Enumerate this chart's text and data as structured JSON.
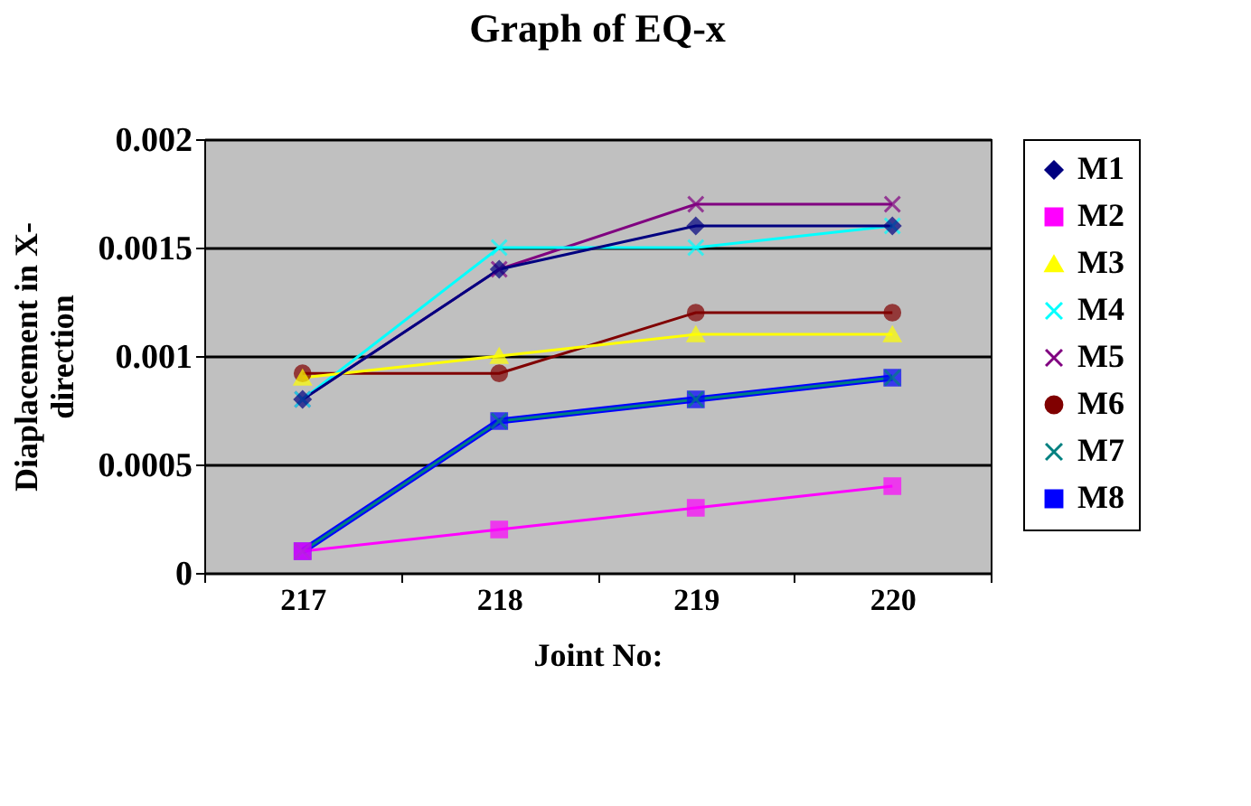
{
  "chart_data": {
    "type": "line",
    "title": "Graph of EQ-x",
    "xlabel": "Joint No:",
    "ylabel": "Diaplacement in X-direction",
    "categories": [
      "217",
      "218",
      "219",
      "220"
    ],
    "ylim": [
      0,
      0.002
    ],
    "yticks": [
      0,
      0.0005,
      0.001,
      0.0015,
      0.002
    ],
    "grid": "y",
    "legend": "right",
    "series": [
      {
        "name": "M1",
        "color": "#000080",
        "marker": "diamond",
        "values": [
          0.0008,
          0.0014,
          0.0016,
          0.0016
        ]
      },
      {
        "name": "M2",
        "color": "#ff00ff",
        "marker": "square",
        "values": [
          0.0001,
          0.0002,
          0.0003,
          0.0004
        ]
      },
      {
        "name": "M3",
        "color": "#ffff00",
        "marker": "triangle",
        "values": [
          0.0009,
          0.001,
          0.0011,
          0.0011
        ]
      },
      {
        "name": "M4",
        "color": "#00ffff",
        "marker": "cross",
        "values": [
          0.0008,
          0.0015,
          0.0015,
          0.0016
        ]
      },
      {
        "name": "M5",
        "color": "#800080",
        "marker": "cross",
        "values": [
          0.0008,
          0.0014,
          0.0017,
          0.0017
        ]
      },
      {
        "name": "M6",
        "color": "#800000",
        "marker": "circle",
        "values": [
          0.00092,
          0.00092,
          0.0012,
          0.0012
        ]
      },
      {
        "name": "M7",
        "color": "#008080",
        "marker": "cross",
        "values": [
          0.0001,
          0.0007,
          0.0008,
          0.0009
        ]
      },
      {
        "name": "M8",
        "color": "#0000ff",
        "marker": "square",
        "values": [
          0.0001,
          0.0007,
          0.0008,
          0.0009
        ]
      }
    ]
  }
}
